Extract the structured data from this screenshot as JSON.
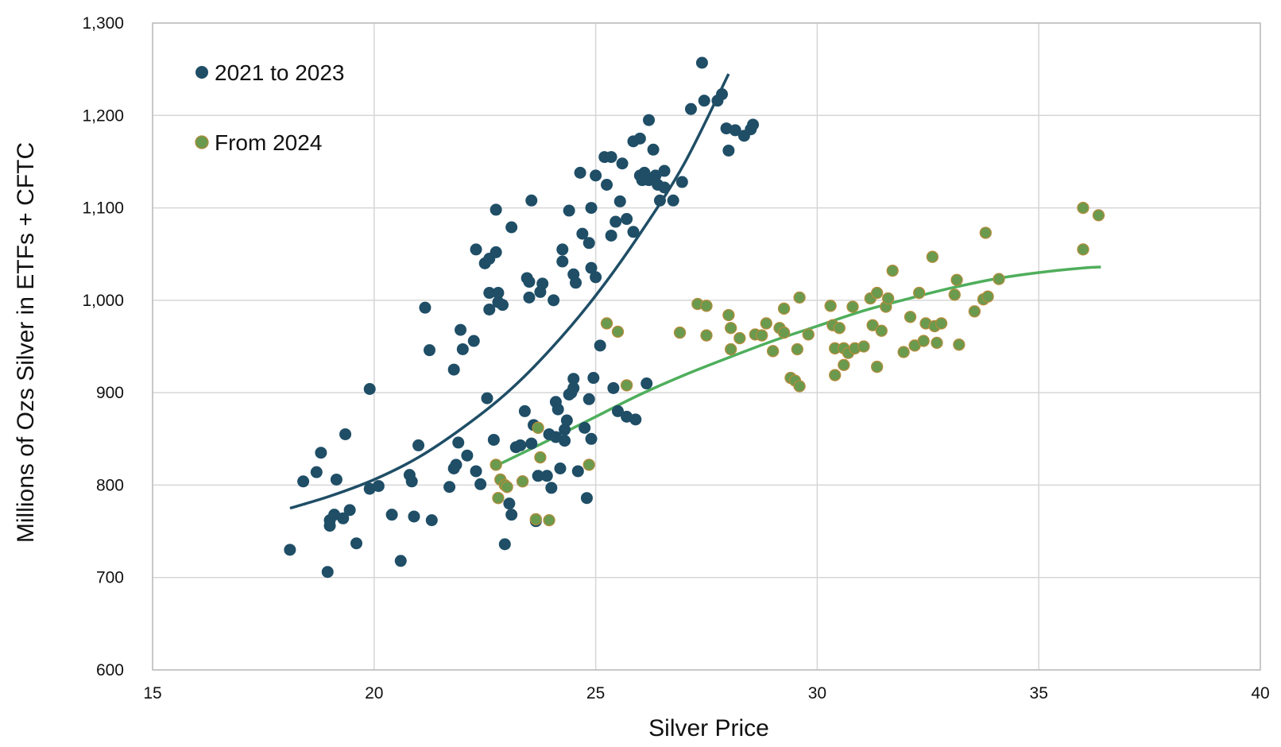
{
  "chart_data": {
    "type": "scatter",
    "title": "",
    "xlabel": "Silver Price",
    "ylabel": "Millions of Ozs Silver in ETFs + CFTC",
    "xlim": [
      15,
      40
    ],
    "ylim": [
      600,
      1300
    ],
    "x_ticks": [
      15,
      20,
      25,
      30,
      35,
      40
    ],
    "y_ticks": [
      600,
      700,
      800,
      900,
      1000,
      1100,
      1200,
      1300
    ],
    "x_tick_labels": [
      "15",
      "20",
      "25",
      "30",
      "35",
      "40"
    ],
    "y_tick_labels": [
      "600",
      "700",
      "800",
      "900",
      "1,000",
      "1,100",
      "1,200",
      "1,300"
    ],
    "grid": true,
    "legend_position": "top-left",
    "series": [
      {
        "name": "2021 to 2023",
        "color": "#1f4e66",
        "trendline": {
          "type": "polynomial",
          "points": [
            [
              18.1,
              775
            ],
            [
              19,
              788
            ],
            [
              20,
              806
            ],
            [
              21,
              830
            ],
            [
              22,
              862
            ],
            [
              23,
              900
            ],
            [
              24,
              948
            ],
            [
              25,
              1005
            ],
            [
              26,
              1072
            ],
            [
              27,
              1148
            ],
            [
              28,
              1245
            ]
          ]
        },
        "points": [
          [
            18.1,
            730
          ],
          [
            18.4,
            804
          ],
          [
            18.7,
            814
          ],
          [
            18.8,
            835
          ],
          [
            18.95,
            706
          ],
          [
            19,
            762
          ],
          [
            19,
            756
          ],
          [
            19.15,
            806
          ],
          [
            19.1,
            768
          ],
          [
            19.3,
            764
          ],
          [
            19.35,
            855
          ],
          [
            19.45,
            773
          ],
          [
            19.6,
            737
          ],
          [
            19.9,
            904
          ],
          [
            19.9,
            796
          ],
          [
            20.1,
            799
          ],
          [
            20.4,
            768
          ],
          [
            20.6,
            718
          ],
          [
            20.8,
            811
          ],
          [
            20.85,
            804
          ],
          [
            20.9,
            766
          ],
          [
            21,
            843
          ],
          [
            21.15,
            992
          ],
          [
            21.25,
            946
          ],
          [
            21.3,
            762
          ],
          [
            21.7,
            798
          ],
          [
            21.8,
            925
          ],
          [
            21.8,
            818
          ],
          [
            21.85,
            822
          ],
          [
            21.9,
            846
          ],
          [
            21.95,
            968
          ],
          [
            22,
            947
          ],
          [
            22.1,
            832
          ],
          [
            22.25,
            956
          ],
          [
            22.3,
            815
          ],
          [
            22.3,
            1055
          ],
          [
            22.4,
            801
          ],
          [
            22.5,
            1040
          ],
          [
            22.55,
            894
          ],
          [
            22.6,
            1045
          ],
          [
            22.6,
            1008
          ],
          [
            22.6,
            990
          ],
          [
            22.7,
            849
          ],
          [
            22.75,
            1052
          ],
          [
            22.75,
            1098
          ],
          [
            22.8,
            1008
          ],
          [
            22.8,
            998
          ],
          [
            22.9,
            995
          ],
          [
            22.95,
            736
          ],
          [
            23,
            798
          ],
          [
            23.05,
            780
          ],
          [
            23.1,
            768
          ],
          [
            23.1,
            1079
          ],
          [
            23.2,
            841
          ],
          [
            23.3,
            843
          ],
          [
            23.35,
            804
          ],
          [
            23.4,
            880
          ],
          [
            23.45,
            1024
          ],
          [
            23.5,
            1020
          ],
          [
            23.5,
            1003
          ],
          [
            23.55,
            845
          ],
          [
            23.55,
            1108
          ],
          [
            23.6,
            865
          ],
          [
            23.65,
            761
          ],
          [
            23.7,
            810
          ],
          [
            23.75,
            1009
          ],
          [
            23.8,
            1018
          ],
          [
            23.9,
            810
          ],
          [
            23.95,
            855
          ],
          [
            24,
            797
          ],
          [
            24.05,
            1000
          ],
          [
            24.1,
            890
          ],
          [
            24.1,
            852
          ],
          [
            24.15,
            882
          ],
          [
            24.2,
            818
          ],
          [
            24.25,
            1042
          ],
          [
            24.25,
            1055
          ],
          [
            24.3,
            860
          ],
          [
            24.3,
            848
          ],
          [
            24.35,
            870
          ],
          [
            24.4,
            898
          ],
          [
            24.4,
            1097
          ],
          [
            24.45,
            900
          ],
          [
            24.5,
            1028
          ],
          [
            24.5,
            915
          ],
          [
            24.5,
            905
          ],
          [
            24.55,
            1019
          ],
          [
            24.6,
            815
          ],
          [
            24.65,
            1138
          ],
          [
            24.7,
            1072
          ],
          [
            24.75,
            862
          ],
          [
            24.8,
            786
          ],
          [
            24.85,
            1062
          ],
          [
            24.85,
            893
          ],
          [
            24.9,
            1035
          ],
          [
            24.9,
            1100
          ],
          [
            24.9,
            850
          ],
          [
            24.95,
            916
          ],
          [
            25,
            1135
          ],
          [
            25,
            1025
          ],
          [
            25.1,
            951
          ],
          [
            25.2,
            1155
          ],
          [
            25.25,
            1125
          ],
          [
            25.35,
            1155
          ],
          [
            25.35,
            1070
          ],
          [
            25.4,
            905
          ],
          [
            25.45,
            1085
          ],
          [
            25.5,
            880
          ],
          [
            25.55,
            1107
          ],
          [
            25.6,
            1148
          ],
          [
            25.7,
            1088
          ],
          [
            25.7,
            874
          ],
          [
            25.85,
            1074
          ],
          [
            25.85,
            1172
          ],
          [
            25.9,
            871
          ],
          [
            26,
            1175
          ],
          [
            26,
            1135
          ],
          [
            26.05,
            1130
          ],
          [
            26.1,
            1138
          ],
          [
            26.15,
            910
          ],
          [
            26.2,
            1195
          ],
          [
            26.2,
            1130
          ],
          [
            26.3,
            1163
          ],
          [
            26.3,
            1132
          ],
          [
            26.35,
            1135
          ],
          [
            26.4,
            1125
          ],
          [
            26.45,
            1108
          ],
          [
            26.55,
            1140
          ],
          [
            26.55,
            1122
          ],
          [
            26.75,
            1108
          ],
          [
            26.95,
            1128
          ],
          [
            27.15,
            1207
          ],
          [
            27.4,
            1257
          ],
          [
            27.45,
            1216
          ],
          [
            27.75,
            1216
          ],
          [
            27.85,
            1223
          ],
          [
            27.95,
            1186
          ],
          [
            28,
            1162
          ],
          [
            28.15,
            1184
          ],
          [
            28.35,
            1178
          ],
          [
            28.5,
            1185
          ],
          [
            28.55,
            1190
          ]
        ]
      },
      {
        "name": "From 2024",
        "color": "#6a9a4e",
        "trendline": {
          "type": "polynomial",
          "points": [
            [
              22.8,
              822
            ],
            [
              24,
              850
            ],
            [
              25,
              874
            ],
            [
              26,
              898
            ],
            [
              27,
              919
            ],
            [
              28,
              938
            ],
            [
              29,
              956
            ],
            [
              30,
              972
            ],
            [
              31,
              988
            ],
            [
              32,
              1001
            ],
            [
              33,
              1013
            ],
            [
              34,
              1023
            ],
            [
              35,
              1030
            ],
            [
              36,
              1035
            ],
            [
              36.4,
              1036
            ]
          ]
        },
        "points": [
          [
            22.75,
            822
          ],
          [
            22.8,
            786
          ],
          [
            22.85,
            806
          ],
          [
            22.95,
            800
          ],
          [
            23,
            798
          ],
          [
            23.35,
            804
          ],
          [
            23.65,
            763
          ],
          [
            23.7,
            862
          ],
          [
            23.75,
            830
          ],
          [
            23.95,
            762
          ],
          [
            24.85,
            822
          ],
          [
            25.25,
            975
          ],
          [
            25.5,
            966
          ],
          [
            25.7,
            908
          ],
          [
            26.9,
            965
          ],
          [
            27.3,
            996
          ],
          [
            27.5,
            994
          ],
          [
            27.5,
            962
          ],
          [
            28,
            984
          ],
          [
            28.05,
            970
          ],
          [
            28.05,
            947
          ],
          [
            28.25,
            959
          ],
          [
            28.6,
            963
          ],
          [
            28.75,
            962
          ],
          [
            28.85,
            975
          ],
          [
            29,
            945
          ],
          [
            29.15,
            970
          ],
          [
            29.25,
            965
          ],
          [
            29.25,
            991
          ],
          [
            29.4,
            916
          ],
          [
            29.5,
            913
          ],
          [
            29.55,
            947
          ],
          [
            29.6,
            1003
          ],
          [
            29.6,
            907
          ],
          [
            29.8,
            963
          ],
          [
            30.3,
            994
          ],
          [
            30.35,
            973
          ],
          [
            30.4,
            948
          ],
          [
            30.4,
            919
          ],
          [
            30.5,
            970
          ],
          [
            30.6,
            930
          ],
          [
            30.6,
            948
          ],
          [
            30.7,
            943
          ],
          [
            30.8,
            993
          ],
          [
            30.85,
            948
          ],
          [
            31.05,
            950
          ],
          [
            31.2,
            1002
          ],
          [
            31.25,
            973
          ],
          [
            31.35,
            1008
          ],
          [
            31.35,
            928
          ],
          [
            31.45,
            967
          ],
          [
            31.55,
            993
          ],
          [
            31.6,
            1002
          ],
          [
            31.7,
            1032
          ],
          [
            31.95,
            944
          ],
          [
            32.1,
            982
          ],
          [
            32.2,
            951
          ],
          [
            32.3,
            1008
          ],
          [
            32.4,
            956
          ],
          [
            32.45,
            975
          ],
          [
            32.6,
            1047
          ],
          [
            32.65,
            972
          ],
          [
            32.7,
            954
          ],
          [
            32.8,
            975
          ],
          [
            33.1,
            1006
          ],
          [
            33.15,
            1022
          ],
          [
            33.2,
            952
          ],
          [
            33.55,
            988
          ],
          [
            33.75,
            1001
          ],
          [
            33.8,
            1073
          ],
          [
            33.85,
            1004
          ],
          [
            34.1,
            1023
          ],
          [
            36,
            1055
          ],
          [
            36,
            1100
          ],
          [
            36.35,
            1092
          ]
        ]
      }
    ]
  }
}
